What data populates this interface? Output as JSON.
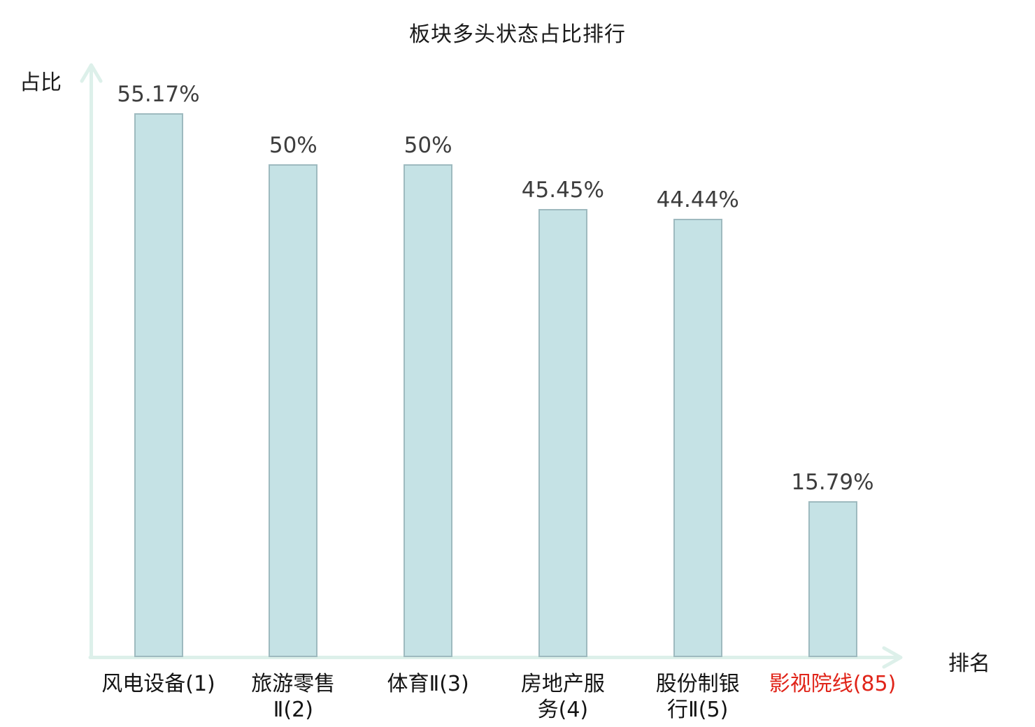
{
  "title": "板块多头状态占比排行",
  "axes": {
    "y_label": "占比",
    "x_label": "排名"
  },
  "colors": {
    "axis_color": "#ddf0ea",
    "bar_fill": "#c5e2e5",
    "bar_border": "#9ebabf",
    "value_text": "#3d3d3d",
    "category_text": "#141414",
    "highlight_text": "#e02419",
    "background": "#ffffff"
  },
  "chart_data": {
    "type": "bar",
    "title": "板块多头状态占比排行",
    "xlabel": "排名",
    "ylabel": "占比",
    "categories": [
      "风电设备(1)",
      "旅游零售Ⅱ(2)",
      "体育Ⅱ(3)",
      "房地产服务(4)",
      "股份制银行Ⅱ(5)",
      "影视院线(85)"
    ],
    "category_lines": [
      [
        "风电设备(1)"
      ],
      [
        "旅游零售",
        "Ⅱ(2)"
      ],
      [
        "体育Ⅱ(3)"
      ],
      [
        "房地产服",
        "务(4)"
      ],
      [
        "股份制银",
        "行Ⅱ(5)"
      ],
      [
        "影视院线(85)"
      ]
    ],
    "values": [
      55.17,
      50,
      50,
      45.45,
      44.44,
      15.79
    ],
    "value_labels": [
      "55.17%",
      "50%",
      "50%",
      "45.45%",
      "44.44%",
      "15.79%"
    ],
    "highlighted_category_index": 5,
    "ranks": [
      1,
      2,
      3,
      4,
      5,
      85
    ],
    "ylim": [
      0,
      60
    ],
    "grid": false,
    "legend": null,
    "y_axis_ticks": [],
    "value_label_position": "above-bars"
  }
}
